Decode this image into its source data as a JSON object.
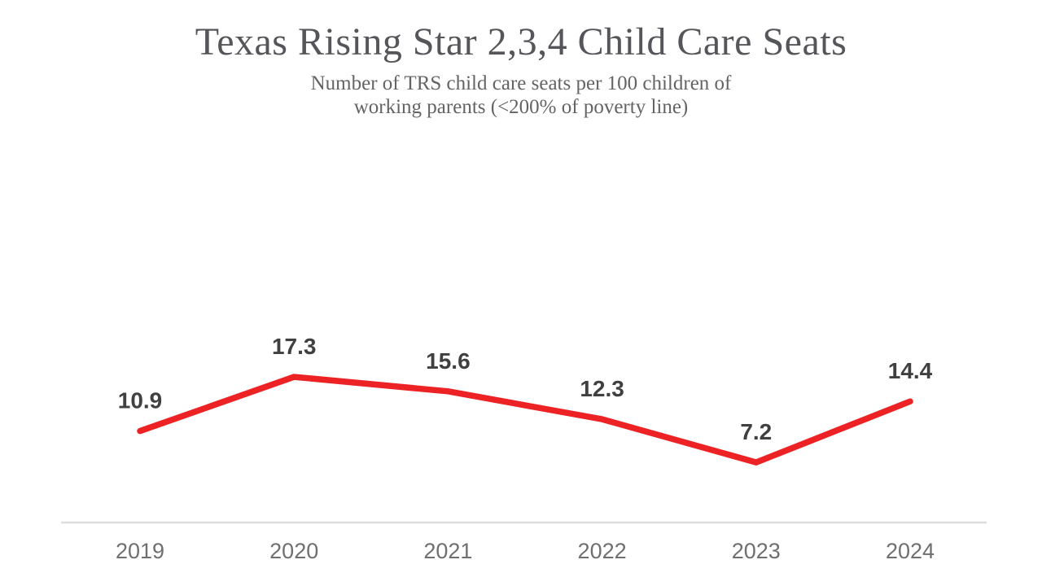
{
  "header": {
    "title": "Texas Rising Star 2,3,4 Child Care Seats",
    "subtitle_line1": "Number of TRS child care seats per 100 children of",
    "subtitle_line2": "working parents (<200% of poverty line)"
  },
  "chart_data": {
    "type": "line",
    "title": "Texas Rising Star 2,3,4 Child Care Seats",
    "subtitle": "Number of TRS child care seats per 100 children of working parents (<200% of poverty line)",
    "categories": [
      "2019",
      "2020",
      "2021",
      "2022",
      "2023",
      "2024"
    ],
    "values": [
      10.9,
      17.3,
      15.6,
      12.3,
      7.2,
      14.4
    ],
    "data_labels": [
      "10.9",
      "17.3",
      "15.6",
      "12.3",
      "7.2",
      "14.4"
    ],
    "xlabel": "",
    "ylabel": "",
    "ylim": [
      0,
      20
    ],
    "grid": false,
    "legend": "none",
    "colors": {
      "line": "#ED2224",
      "data_label": "#404040",
      "title": "#55565A",
      "subtitle": "#636466",
      "axis_label": "#6F6F6F",
      "axis_line": "#DEDEDE",
      "background": "#FFFFFF"
    }
  }
}
